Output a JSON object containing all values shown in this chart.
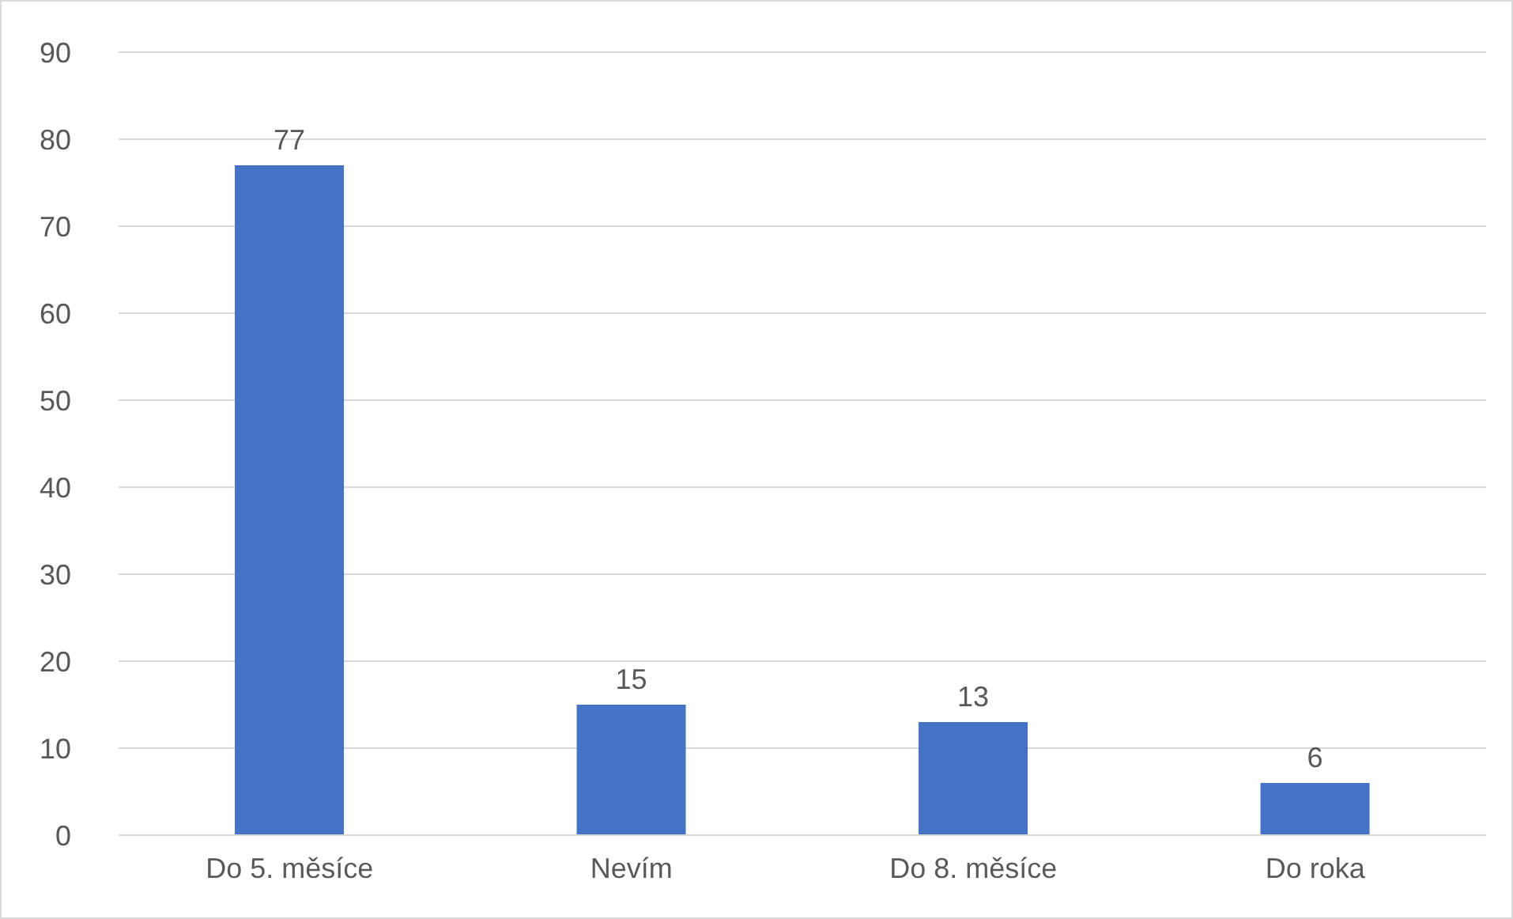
{
  "chart_data": {
    "type": "bar",
    "categories": [
      "Do 5. měsíce",
      "Nevím",
      "Do 8. měsíce",
      "Do roka"
    ],
    "values": [
      77,
      15,
      13,
      6
    ],
    "color": "#4472c4",
    "ylim": [
      0,
      90
    ],
    "yticks": [
      0,
      10,
      20,
      30,
      40,
      50,
      60,
      70,
      80,
      90
    ],
    "grid": "y",
    "data_labels": true
  }
}
